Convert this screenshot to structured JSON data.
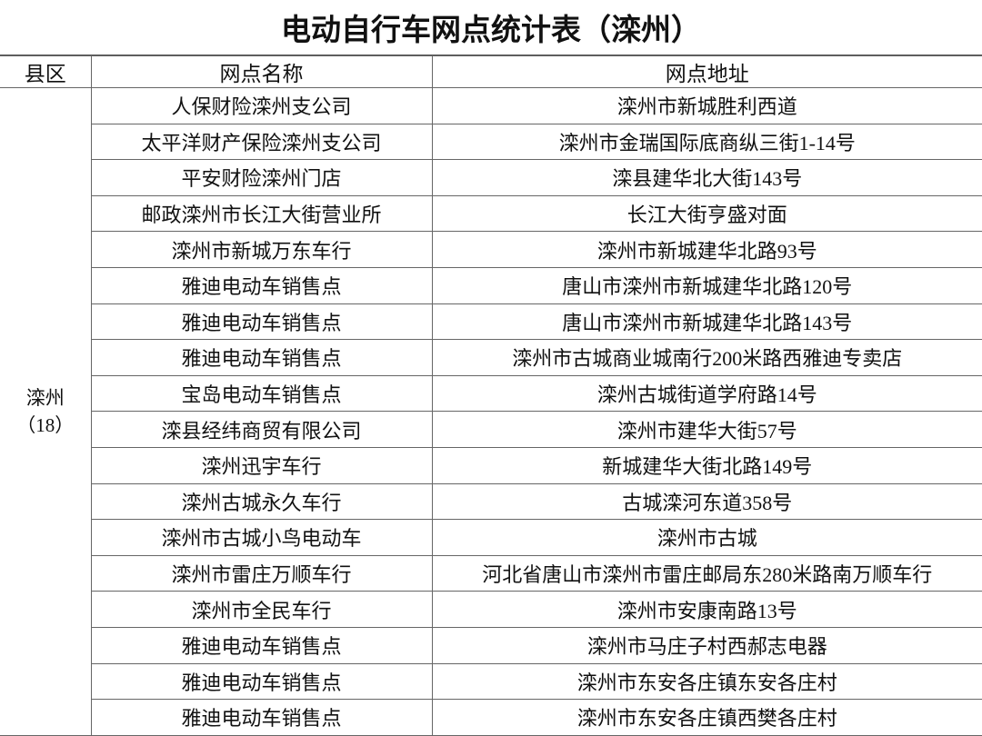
{
  "title": "电动自行车网点统计表（滦州）",
  "headers": {
    "county": "县区",
    "name": "网点名称",
    "address": "网点地址"
  },
  "county": {
    "name": "滦州",
    "count": "（18）"
  },
  "rows": [
    {
      "name": "人保财险滦州支公司",
      "address": "滦州市新城胜利西道"
    },
    {
      "name": "太平洋财产保险滦州支公司",
      "address": "滦州市金瑞国际底商纵三街1-14号"
    },
    {
      "name": "平安财险滦州门店",
      "address": "滦县建华北大街143号"
    },
    {
      "name": "邮政滦州市长江大街营业所",
      "address": "长江大街亨盛对面"
    },
    {
      "name": "滦州市新城万东车行",
      "address": "滦州市新城建华北路93号"
    },
    {
      "name": "雅迪电动车销售点",
      "address": "唐山市滦州市新城建华北路120号"
    },
    {
      "name": "雅迪电动车销售点",
      "address": "唐山市滦州市新城建华北路143号"
    },
    {
      "name": "雅迪电动车销售点",
      "address": "滦州市古城商业城南行200米路西雅迪专卖店"
    },
    {
      "name": "宝岛电动车销售点",
      "address": "滦州古城街道学府路14号"
    },
    {
      "name": "滦县经纬商贸有限公司",
      "address": "滦州市建华大街57号"
    },
    {
      "name": "滦州迅宇车行",
      "address": "新城建华大街北路149号"
    },
    {
      "name": "滦州古城永久车行",
      "address": "古城滦河东道358号"
    },
    {
      "name": "滦州市古城小鸟电动车",
      "address": "滦州市古城"
    },
    {
      "name": "滦州市雷庄万顺车行",
      "address": "河北省唐山市滦州市雷庄邮局东280米路南万顺车行"
    },
    {
      "name": "滦州市全民车行",
      "address": "滦州市安康南路13号"
    },
    {
      "name": "雅迪电动车销售点",
      "address": "滦州市马庄子村西郝志电器"
    },
    {
      "name": "雅迪电动车销售点",
      "address": "滦州市东安各庄镇东安各庄村"
    },
    {
      "name": "雅迪电动车销售点",
      "address": "滦州市东安各庄镇西樊各庄村"
    }
  ]
}
